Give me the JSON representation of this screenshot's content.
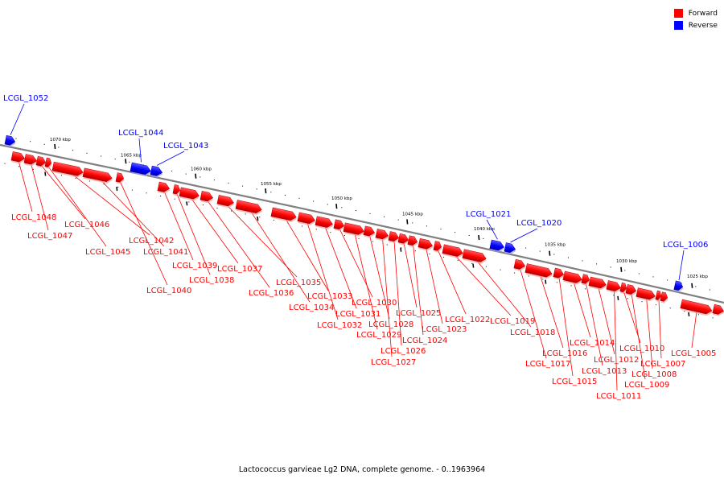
{
  "legend": {
    "forward_label": "Forward",
    "reverse_label": "Reverse",
    "forward_color": "#ff0000",
    "reverse_color": "#0000ff"
  },
  "caption": "Lactococcus garvieae Lg2 DNA, complete genome. - 0..1963964",
  "kbp_labels": [
    "1070 kbp",
    "1065 kbp",
    "1060 kbp",
    "1055 kbp",
    "1050 kbp",
    "1045 kbp",
    "1040 kbp",
    "1035 kbp",
    "1030 kbp",
    "1025 kbp"
  ],
  "genes": [
    {
      "name": "LCGL_1052",
      "strand": "reverse"
    },
    {
      "name": "LCGL_1048",
      "strand": "forward"
    },
    {
      "name": "LCGL_1047",
      "strand": "forward"
    },
    {
      "name": "LCGL_1046",
      "strand": "forward"
    },
    {
      "name": "LCGL_1045",
      "strand": "forward"
    },
    {
      "name": "LCGL_1044",
      "strand": "reverse"
    },
    {
      "name": "LCGL_1043",
      "strand": "reverse"
    },
    {
      "name": "LCGL_1042",
      "strand": "forward"
    },
    {
      "name": "LCGL_1041",
      "strand": "forward"
    },
    {
      "name": "LCGL_1040",
      "strand": "forward"
    },
    {
      "name": "LCGL_1039",
      "strand": "forward"
    },
    {
      "name": "LCGL_1038",
      "strand": "forward"
    },
    {
      "name": "LCGL_1037",
      "strand": "forward"
    },
    {
      "name": "LCGL_1036",
      "strand": "forward"
    },
    {
      "name": "LCGL_1035",
      "strand": "forward"
    },
    {
      "name": "LCGL_1034",
      "strand": "forward"
    },
    {
      "name": "LCGL_1033",
      "strand": "forward"
    },
    {
      "name": "LCGL_1032",
      "strand": "forward"
    },
    {
      "name": "LCGL_1031",
      "strand": "forward"
    },
    {
      "name": "LCGL_1030",
      "strand": "forward"
    },
    {
      "name": "LCGL_1029",
      "strand": "forward"
    },
    {
      "name": "LCGL_1028",
      "strand": "forward"
    },
    {
      "name": "LCGL_1027",
      "strand": "forward"
    },
    {
      "name": "LCGL_1026",
      "strand": "forward"
    },
    {
      "name": "LCGL_1025",
      "strand": "forward"
    },
    {
      "name": "LCGL_1024",
      "strand": "forward"
    },
    {
      "name": "LCGL_1023",
      "strand": "forward"
    },
    {
      "name": "LCGL_1022",
      "strand": "forward"
    },
    {
      "name": "LCGL_1021",
      "strand": "reverse"
    },
    {
      "name": "LCGL_1020",
      "strand": "reverse"
    },
    {
      "name": "LCGL_1019",
      "strand": "forward"
    },
    {
      "name": "LCGL_1018",
      "strand": "forward"
    },
    {
      "name": "LCGL_1017",
      "strand": "forward"
    },
    {
      "name": "LCGL_1016",
      "strand": "forward"
    },
    {
      "name": "LCGL_1015",
      "strand": "forward"
    },
    {
      "name": "LCGL_1014",
      "strand": "forward"
    },
    {
      "name": "LCGL_1013",
      "strand": "forward"
    },
    {
      "name": "LCGL_1012",
      "strand": "forward"
    },
    {
      "name": "LCGL_1011",
      "strand": "forward"
    },
    {
      "name": "LCGL_1010",
      "strand": "forward"
    },
    {
      "name": "LCGL_1009",
      "strand": "forward"
    },
    {
      "name": "LCGL_1008",
      "strand": "forward"
    },
    {
      "name": "LCGL_1007",
      "strand": "forward"
    },
    {
      "name": "LCGL_1006",
      "strand": "reverse"
    },
    {
      "name": "LCGL_1005",
      "strand": "forward"
    }
  ]
}
